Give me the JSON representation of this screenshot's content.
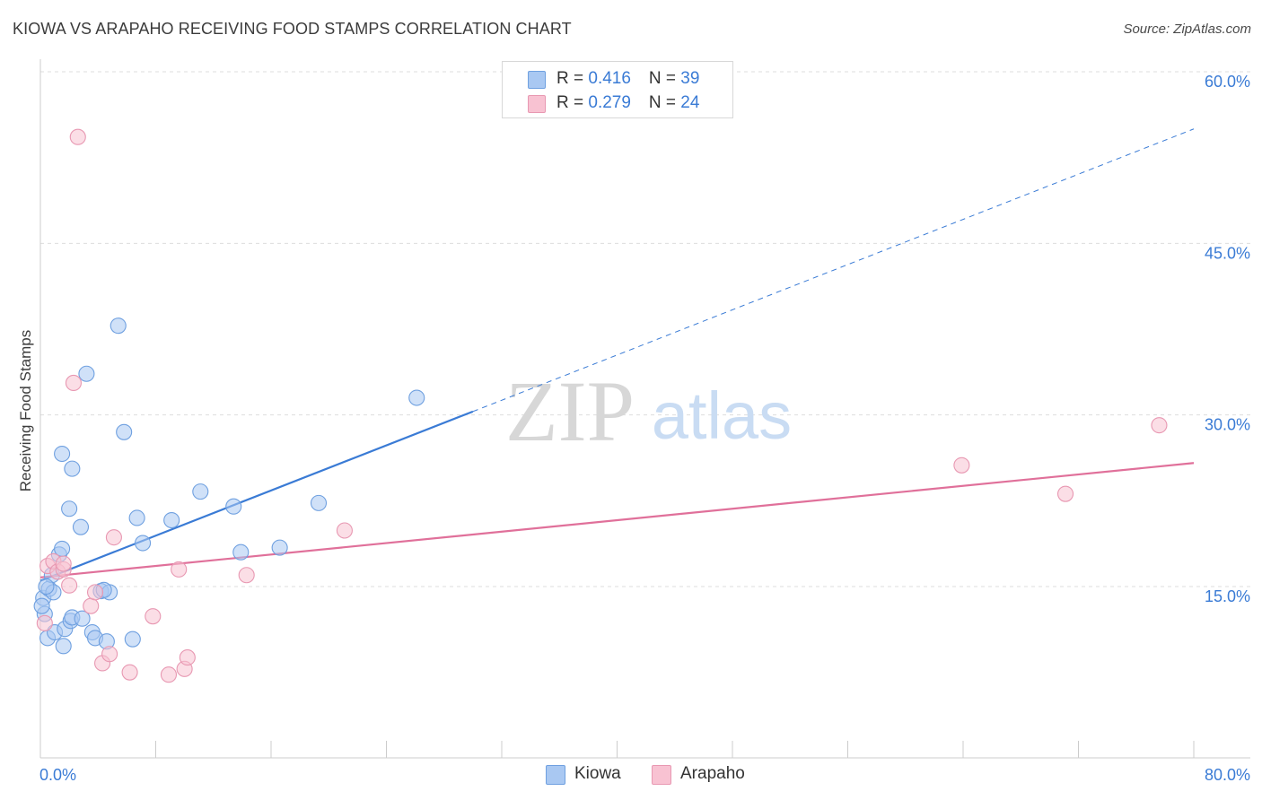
{
  "title": "KIOWA VS ARAPAHO RECEIVING FOOD STAMPS CORRELATION CHART",
  "source": "Source: ZipAtlas.com",
  "watermark": {
    "zip": "ZIP",
    "atlas": "atlas"
  },
  "legend": {
    "rows": [
      {
        "r_label": "R = ",
        "r_value": "0.416",
        "n_label": "N = ",
        "n_value": "39",
        "color": "#a9c8f2"
      },
      {
        "r_label": "R = ",
        "r_value": "0.279",
        "n_label": "N = ",
        "n_value": "24",
        "color": "#f8c2d2"
      }
    ]
  },
  "bottom_legend": [
    {
      "label": "Kiowa",
      "color": "#a9c8f2"
    },
    {
      "label": "Arapaho",
      "color": "#f8c2d2"
    }
  ],
  "chart_data": {
    "type": "scatter",
    "title": "KIOWA VS ARAPAHO RECEIVING FOOD STAMPS CORRELATION CHART",
    "xlabel": "",
    "ylabel": "Receiving Food Stamps",
    "xlim": [
      0,
      80
    ],
    "ylim": [
      0,
      62
    ],
    "x_tick_labels": [
      "0.0%",
      "80.0%"
    ],
    "y_ticks": [
      15,
      30,
      45,
      60
    ],
    "y_tick_labels": [
      "15.0%",
      "30.0%",
      "45.0%",
      "60.0%"
    ],
    "grid": true,
    "series": [
      {
        "name": "Kiowa",
        "color": "#3a7bd5",
        "fill": "#a9c8f2",
        "r": 0.416,
        "n": 39,
        "points": [
          [
            0.2,
            14.0
          ],
          [
            0.3,
            12.6
          ],
          [
            0.5,
            10.5
          ],
          [
            0.6,
            14.8
          ],
          [
            0.8,
            16.0
          ],
          [
            0.9,
            14.5
          ],
          [
            1.0,
            11.0
          ],
          [
            1.3,
            17.8
          ],
          [
            1.5,
            18.3
          ],
          [
            1.5,
            26.6
          ],
          [
            1.6,
            9.8
          ],
          [
            1.7,
            11.3
          ],
          [
            2.0,
            21.8
          ],
          [
            2.1,
            12.0
          ],
          [
            2.2,
            25.3
          ],
          [
            2.2,
            12.3
          ],
          [
            2.8,
            20.2
          ],
          [
            2.9,
            12.2
          ],
          [
            3.2,
            33.6
          ],
          [
            3.6,
            11.0
          ],
          [
            3.8,
            10.5
          ],
          [
            4.2,
            14.6
          ],
          [
            4.6,
            10.2
          ],
          [
            4.8,
            14.5
          ],
          [
            5.4,
            37.8
          ],
          [
            5.8,
            28.5
          ],
          [
            6.4,
            10.4
          ],
          [
            6.7,
            21.0
          ],
          [
            7.1,
            18.8
          ],
          [
            9.1,
            20.8
          ],
          [
            11.1,
            23.3
          ],
          [
            13.4,
            22.0
          ],
          [
            13.9,
            18.0
          ],
          [
            16.6,
            18.4
          ],
          [
            19.3,
            22.3
          ],
          [
            26.1,
            31.5
          ],
          [
            0.1,
            13.3
          ],
          [
            0.4,
            15.0
          ],
          [
            4.4,
            14.7
          ]
        ],
        "trend": {
          "x0": 0,
          "y0": 15.5,
          "x1": 30.0,
          "y1": 30.3,
          "dashed_to_x": 80.0,
          "dashed_to_y": 55.0
        }
      },
      {
        "name": "Arapaho",
        "color": "#e0709a",
        "fill": "#f8c2d2",
        "r": 0.279,
        "n": 24,
        "points": [
          [
            0.3,
            11.8
          ],
          [
            0.5,
            16.8
          ],
          [
            0.9,
            17.2
          ],
          [
            1.2,
            16.3
          ],
          [
            1.6,
            16.5
          ],
          [
            1.6,
            17.0
          ],
          [
            2.0,
            15.1
          ],
          [
            2.3,
            32.8
          ],
          [
            2.6,
            54.3
          ],
          [
            3.5,
            13.3
          ],
          [
            3.8,
            14.5
          ],
          [
            4.3,
            8.3
          ],
          [
            4.8,
            9.1
          ],
          [
            5.1,
            19.3
          ],
          [
            6.2,
            7.5
          ],
          [
            7.8,
            12.4
          ],
          [
            8.9,
            7.3
          ],
          [
            9.6,
            16.5
          ],
          [
            10.0,
            7.8
          ],
          [
            10.2,
            8.8
          ],
          [
            14.3,
            16.0
          ],
          [
            21.1,
            19.9
          ],
          [
            63.9,
            25.6
          ],
          [
            71.1,
            23.1
          ]
        ],
        "extra_points": [
          [
            77.6,
            29.1
          ]
        ],
        "trend": {
          "x0": 0,
          "y0": 15.8,
          "x1": 80.0,
          "y1": 25.8
        }
      }
    ]
  }
}
